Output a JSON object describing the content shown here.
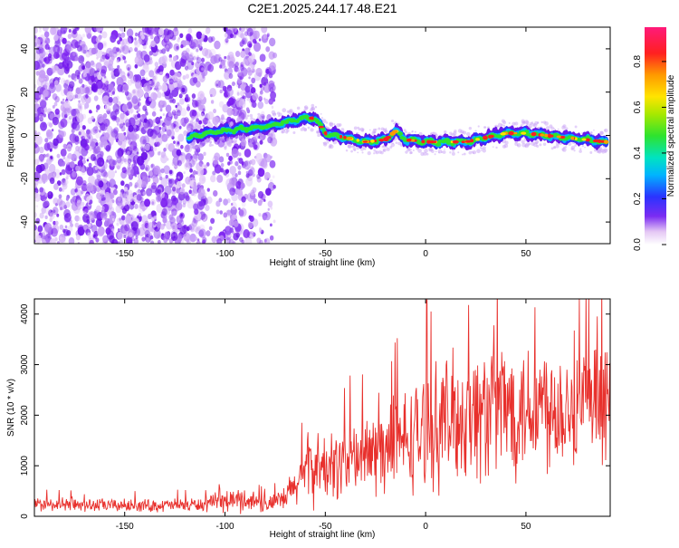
{
  "title": "C2E1.2025.244.17.48.E21",
  "chart_data": [
    {
      "type": "heatmap",
      "xlabel": "Height of straight line (km)",
      "ylabel": "Frequency (Hz)",
      "xlim": [
        -195,
        92
      ],
      "ylim": [
        -50,
        50
      ],
      "xticks": [
        -150,
        -100,
        -50,
        0,
        50
      ],
      "yticks": [
        -40,
        -20,
        0,
        20,
        40
      ],
      "colorbar": {
        "label": "Normalized spectral amplitude",
        "range": [
          0,
          0.95
        ],
        "ticks": [
          0.0,
          0.2,
          0.4,
          0.6,
          0.8
        ],
        "tick_labels": [
          "0.0",
          "0.2",
          "0.4",
          "0.6",
          "0.8"
        ]
      },
      "noise_region_x": [
        -195,
        -75
      ],
      "signal_track": {
        "x": [
          -118,
          -110,
          -100,
          -90,
          -80,
          -70,
          -60,
          -55,
          -50,
          -40,
          -30,
          -20,
          -15,
          -10,
          0,
          10,
          20,
          30,
          40,
          50,
          60,
          70,
          80,
          90
        ],
        "frequency": [
          -1,
          1,
          2,
          3,
          4,
          6,
          8,
          8,
          1,
          -1,
          -3,
          -2,
          2,
          -2,
          -3,
          -3,
          -3,
          -1,
          1,
          1,
          0,
          -1,
          -2,
          -3
        ]
      }
    },
    {
      "type": "line",
      "xlabel": "Height of straight line (km)",
      "ylabel": "SNR (10 * v/v)",
      "xlim": [
        -195,
        92
      ],
      "ylim": [
        0,
        4300
      ],
      "xticks": [
        -150,
        -100,
        -50,
        0,
        50
      ],
      "yticks": [
        0,
        1000,
        2000,
        3000,
        4000
      ],
      "series": [
        {
          "name": "SNR",
          "color": "#e8302c",
          "x": [
            -195,
            -170,
            -140,
            -110,
            -100,
            -90,
            -80,
            -75,
            -70,
            -65,
            -60,
            -55,
            -50,
            -40,
            -30,
            -20,
            -10,
            0,
            10,
            20,
            30,
            35,
            40,
            50,
            60,
            70,
            80,
            92
          ],
          "y_mean": [
            230,
            220,
            210,
            230,
            300,
            330,
            260,
            250,
            350,
            600,
            900,
            1000,
            900,
            1100,
            1200,
            1300,
            1500,
            1700,
            1900,
            2000,
            2100,
            2200,
            2150,
            2200,
            2250,
            2200,
            2150,
            2200
          ],
          "y_spread": [
            160,
            160,
            150,
            170,
            260,
            300,
            220,
            220,
            320,
            500,
            800,
            900,
            800,
            900,
            1000,
            1100,
            1200,
            1400,
            1500,
            1600,
            1700,
            1800,
            1700,
            1600,
            1600,
            1500,
            1400,
            1300
          ]
        }
      ]
    }
  ]
}
